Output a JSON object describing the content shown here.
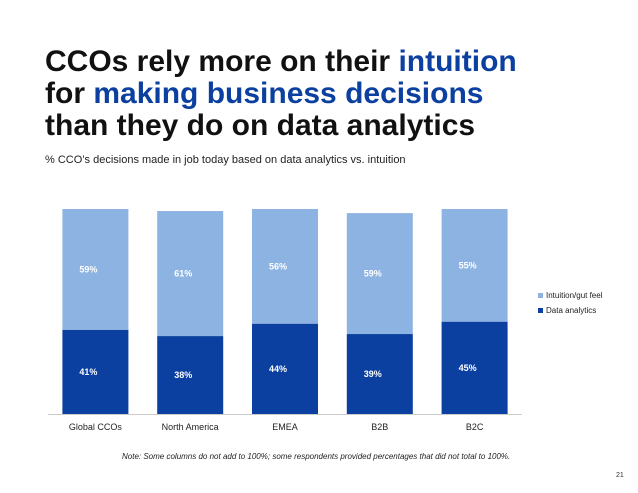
{
  "title": {
    "line1_a": "CCOs rely more on their ",
    "line1_b": "intuition",
    "line2_a": "for ",
    "line2_b": "making business decisions",
    "line3": "than they do on data analytics"
  },
  "subtitle": "% CCO’s decisions made in job today based on data analytics vs. intuition",
  "note": "Note: Some columns do not add to 100%; some respondents provided percentages that did not total to 100%.",
  "page_number": "21",
  "colors": {
    "intuition": "#8db3e2",
    "analytics": "#0b3fa0",
    "highlight": "#0b3fa0"
  },
  "chart_data": {
    "type": "bar",
    "stacked": true,
    "categories": [
      "Global CCOs",
      "North America",
      "EMEA",
      "B2B",
      "B2C"
    ],
    "series": [
      {
        "name": "Data analytics",
        "values": [
          41,
          38,
          44,
          39,
          45
        ],
        "labels": [
          "41%",
          "38%",
          "44%",
          "39%",
          "45%"
        ]
      },
      {
        "name": "Intuition/gut feel",
        "values": [
          59,
          61,
          56,
          59,
          55
        ],
        "labels": [
          "59%",
          "61%",
          "56%",
          "59%",
          "55%"
        ]
      }
    ],
    "legend": [
      "Intuition/gut feel",
      "Data analytics"
    ],
    "legend_position": "right",
    "ylim": [
      0,
      100
    ],
    "grid": false
  }
}
